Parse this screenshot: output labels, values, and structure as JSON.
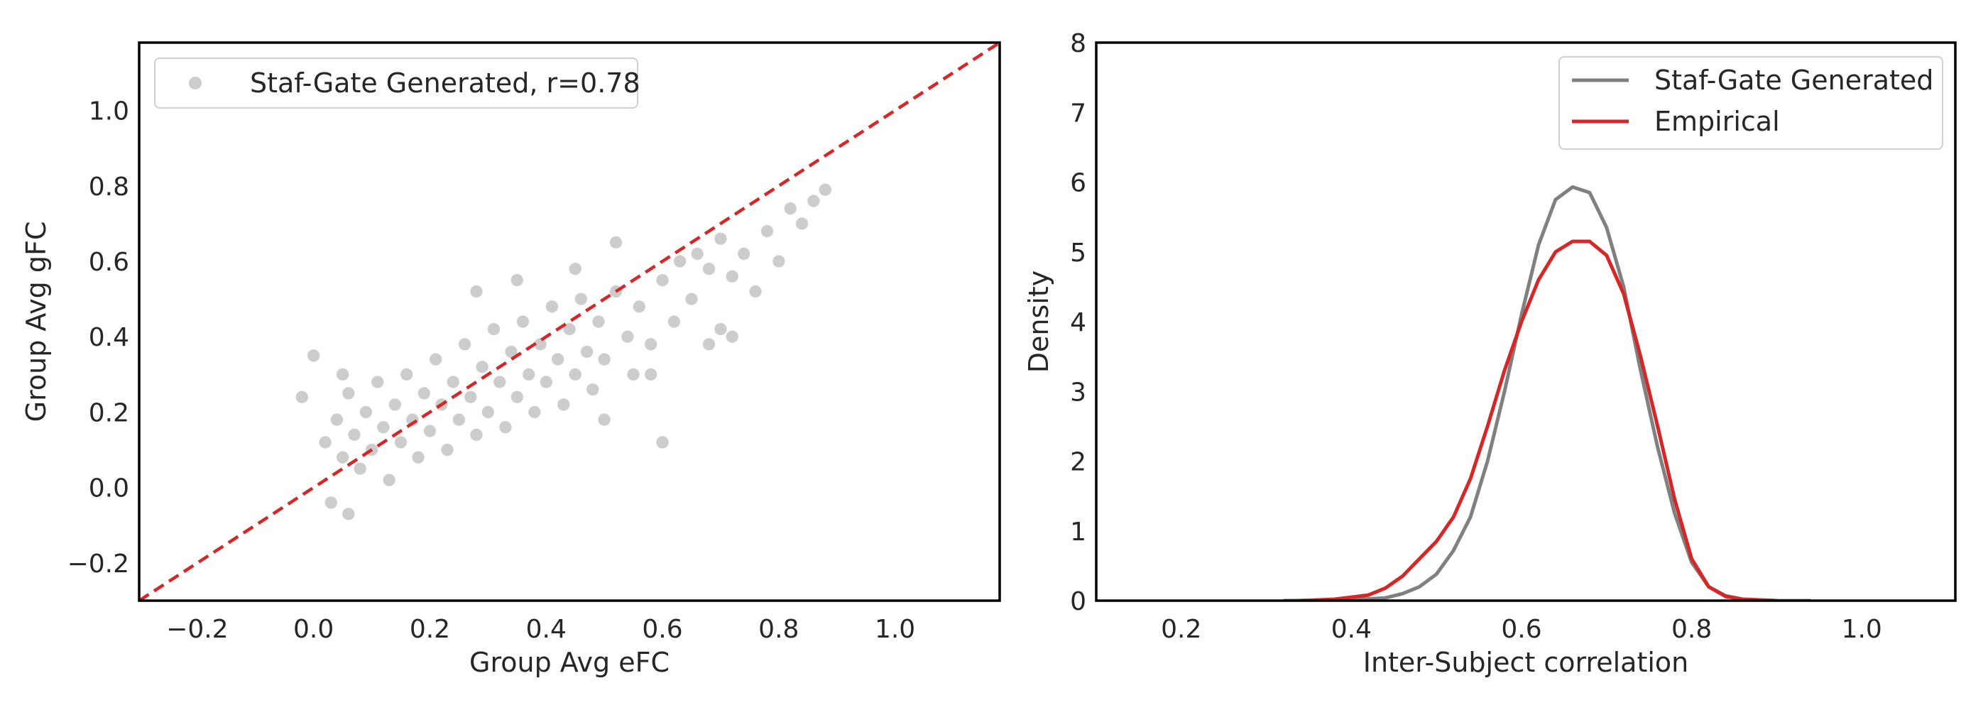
{
  "chart_data": [
    {
      "type": "scatter",
      "xlabel": "Group Avg eFC",
      "ylabel": "Group Avg gFC",
      "xlim": [
        -0.3,
        1.18
      ],
      "ylim": [
        -0.3,
        1.18
      ],
      "xticks": [
        -0.2,
        0.0,
        0.2,
        0.4,
        0.6,
        0.8,
        1.0
      ],
      "yticks": [
        -0.2,
        0.0,
        0.2,
        0.4,
        0.6,
        0.8,
        1.0
      ],
      "xtick_labels": [
        "−0.2",
        "0.0",
        "0.2",
        "0.4",
        "0.6",
        "0.8",
        "1.0"
      ],
      "ytick_labels": [
        "−0.2",
        "0.0",
        "0.2",
        "0.4",
        "0.6",
        "0.8",
        "1.0"
      ],
      "grid": false,
      "legend": "upper-left",
      "series": [
        {
          "name": "Staf-Gate Generated, r=0.78",
          "color": "#808080",
          "points": [
            [
              0.02,
              0.12
            ],
            [
              0.04,
              0.18
            ],
            [
              0.05,
              0.08
            ],
            [
              0.06,
              0.25
            ],
            [
              0.07,
              0.14
            ],
            [
              0.08,
              0.05
            ],
            [
              0.09,
              0.2
            ],
            [
              0.1,
              0.1
            ],
            [
              0.11,
              0.28
            ],
            [
              0.12,
              0.16
            ],
            [
              0.13,
              0.02
            ],
            [
              0.14,
              0.22
            ],
            [
              0.15,
              0.12
            ],
            [
              0.16,
              0.3
            ],
            [
              0.17,
              0.18
            ],
            [
              0.18,
              0.08
            ],
            [
              0.19,
              0.25
            ],
            [
              0.2,
              0.15
            ],
            [
              0.21,
              0.34
            ],
            [
              0.22,
              0.22
            ],
            [
              0.23,
              0.1
            ],
            [
              0.24,
              0.28
            ],
            [
              0.25,
              0.18
            ],
            [
              0.26,
              0.38
            ],
            [
              0.27,
              0.24
            ],
            [
              0.28,
              0.14
            ],
            [
              0.29,
              0.32
            ],
            [
              0.3,
              0.2
            ],
            [
              0.31,
              0.42
            ],
            [
              0.32,
              0.28
            ],
            [
              0.33,
              0.16
            ],
            [
              0.34,
              0.36
            ],
            [
              0.35,
              0.24
            ],
            [
              0.36,
              0.44
            ],
            [
              0.37,
              0.3
            ],
            [
              0.38,
              0.2
            ],
            [
              0.39,
              0.38
            ],
            [
              0.4,
              0.28
            ],
            [
              0.41,
              0.48
            ],
            [
              0.42,
              0.34
            ],
            [
              0.43,
              0.22
            ],
            [
              0.44,
              0.42
            ],
            [
              0.45,
              0.3
            ],
            [
              0.46,
              0.5
            ],
            [
              0.47,
              0.36
            ],
            [
              0.48,
              0.26
            ],
            [
              0.49,
              0.44
            ],
            [
              0.5,
              0.34
            ],
            [
              0.52,
              0.52
            ],
            [
              0.54,
              0.4
            ],
            [
              0.55,
              0.3
            ],
            [
              0.56,
              0.48
            ],
            [
              0.58,
              0.38
            ],
            [
              0.6,
              0.55
            ],
            [
              0.62,
              0.44
            ],
            [
              0.63,
              0.6
            ],
            [
              0.65,
              0.5
            ],
            [
              0.66,
              0.62
            ],
            [
              0.68,
              0.58
            ],
            [
              0.7,
              0.66
            ],
            [
              0.72,
              0.56
            ],
            [
              0.74,
              0.62
            ],
            [
              0.76,
              0.52
            ],
            [
              0.78,
              0.68
            ],
            [
              0.8,
              0.6
            ],
            [
              0.82,
              0.74
            ],
            [
              0.84,
              0.7
            ],
            [
              0.86,
              0.76
            ],
            [
              0.88,
              0.79
            ],
            [
              0.0,
              0.35
            ],
            [
              0.05,
              0.3
            ],
            [
              -0.02,
              0.24
            ],
            [
              0.03,
              -0.04
            ],
            [
              0.06,
              -0.07
            ],
            [
              0.28,
              0.52
            ],
            [
              0.35,
              0.55
            ],
            [
              0.45,
              0.58
            ],
            [
              0.52,
              0.65
            ],
            [
              0.6,
              0.12
            ],
            [
              0.5,
              0.18
            ],
            [
              0.58,
              0.3
            ],
            [
              0.72,
              0.4
            ],
            [
              0.68,
              0.38
            ],
            [
              0.7,
              0.42
            ]
          ]
        },
        {
          "name": "identity",
          "color": "#d62728",
          "style": "dashed",
          "points": [
            [
              -0.3,
              -0.3
            ],
            [
              1.18,
              1.18
            ]
          ]
        }
      ]
    },
    {
      "type": "line",
      "xlabel": "Inter-Subject correlation",
      "ylabel": "Density",
      "xlim": [
        0.1,
        1.11
      ],
      "ylim": [
        0,
        8
      ],
      "xticks": [
        0.2,
        0.4,
        0.6,
        0.8,
        1.0
      ],
      "yticks": [
        0,
        1,
        2,
        3,
        4,
        5,
        6,
        7,
        8
      ],
      "xtick_labels": [
        "0.2",
        "0.4",
        "0.6",
        "0.8",
        "1.0"
      ],
      "ytick_labels": [
        "0",
        "1",
        "2",
        "3",
        "4",
        "5",
        "6",
        "7",
        "8"
      ],
      "grid": false,
      "legend": "upper-right",
      "series": [
        {
          "name": "Staf-Gate Generated",
          "color": "#808080",
          "x": [
            0.32,
            0.4,
            0.44,
            0.46,
            0.48,
            0.5,
            0.52,
            0.54,
            0.56,
            0.58,
            0.6,
            0.62,
            0.64,
            0.66,
            0.68,
            0.7,
            0.72,
            0.74,
            0.76,
            0.78,
            0.8,
            0.82,
            0.84,
            0.86,
            0.9,
            0.94
          ],
          "y": [
            0.0,
            0.01,
            0.04,
            0.1,
            0.2,
            0.38,
            0.72,
            1.2,
            2.0,
            3.0,
            4.1,
            5.1,
            5.75,
            5.93,
            5.85,
            5.35,
            4.5,
            3.3,
            2.2,
            1.25,
            0.55,
            0.2,
            0.07,
            0.02,
            0.0,
            0.0
          ]
        },
        {
          "name": "Empirical",
          "color": "#d62728",
          "x": [
            0.34,
            0.38,
            0.42,
            0.44,
            0.46,
            0.48,
            0.5,
            0.52,
            0.54,
            0.56,
            0.58,
            0.6,
            0.62,
            0.64,
            0.66,
            0.68,
            0.7,
            0.72,
            0.74,
            0.76,
            0.78,
            0.8,
            0.82,
            0.84,
            0.86,
            0.9
          ],
          "y": [
            0.0,
            0.02,
            0.08,
            0.18,
            0.35,
            0.6,
            0.85,
            1.2,
            1.75,
            2.5,
            3.3,
            4.0,
            4.6,
            5.0,
            5.15,
            5.15,
            4.95,
            4.4,
            3.5,
            2.5,
            1.45,
            0.6,
            0.2,
            0.06,
            0.02,
            0.0
          ]
        }
      ]
    }
  ]
}
